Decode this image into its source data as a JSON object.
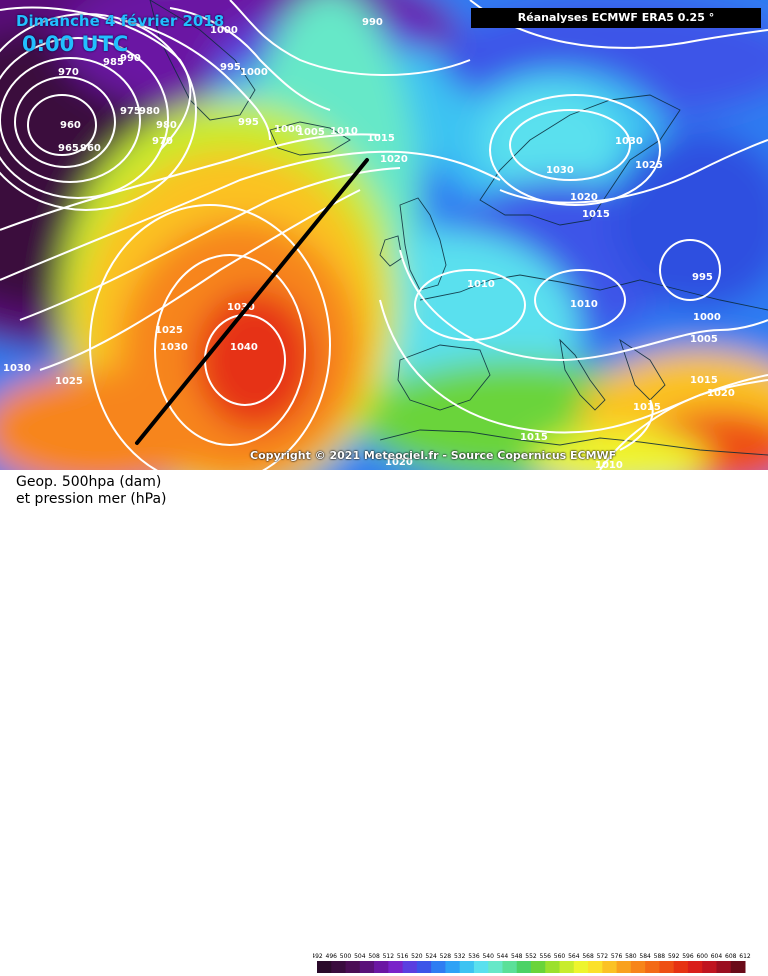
{
  "header": {
    "date_title": "Dimanche 4 février 2018",
    "time_title": "0:00 UTC",
    "source": "Réanalyses ECMWF ERA5 0.25 °"
  },
  "copyright": "Copyright © 2021 Meteociel.fr - Source Copernicus ECMWF",
  "caption": {
    "line1": "Geop. 500hpa (dam)",
    "line2": "et pression mer (hPa)"
  },
  "legend": {
    "ticks": [
      "492",
      "496",
      "500",
      "504",
      "508",
      "512",
      "516",
      "520",
      "524",
      "528",
      "532",
      "536",
      "540",
      "544",
      "548",
      "552",
      "556",
      "560",
      "564",
      "568",
      "572",
      "576",
      "580",
      "584",
      "588",
      "592",
      "596",
      "600",
      "604",
      "608",
      "612"
    ],
    "colors": [
      "#2a0a2a",
      "#3a0c3e",
      "#4b0e55",
      "#5a107a",
      "#6b16a3",
      "#7a22c9",
      "#5a3fe0",
      "#3c55e8",
      "#2f7df2",
      "#2fa2f6",
      "#3dc3f2",
      "#5ae0ee",
      "#66e8c8",
      "#5be099",
      "#4cd266",
      "#6ad43a",
      "#9be02e",
      "#c8ec2e",
      "#eef52e",
      "#fbe12a",
      "#fbc224",
      "#f9a11e",
      "#f7851a",
      "#f36a16",
      "#ee4f14",
      "#e63212",
      "#d91e1a",
      "#c01420",
      "#9a0e20",
      "#6a0a18"
    ]
  },
  "isobars": {
    "labels": [
      "990",
      "1000",
      "995",
      "1000",
      "970",
      "985",
      "990",
      "975",
      "980",
      "980",
      "960",
      "965",
      "960",
      "970",
      "995",
      "1000",
      "1005",
      "1010",
      "1015",
      "1020",
      "1030",
      "1025",
      "1030",
      "1020",
      "1015",
      "995",
      "1000",
      "1005",
      "1015",
      "1020",
      "1015",
      "1010",
      "1010",
      "1025",
      "1030",
      "1040",
      "1030",
      "1030",
      "1025",
      "1015",
      "1020",
      "1010"
    ]
  },
  "colors": {
    "title_accent": "#22bfff",
    "isobar": "#ffffff",
    "background": "#ffffff"
  }
}
